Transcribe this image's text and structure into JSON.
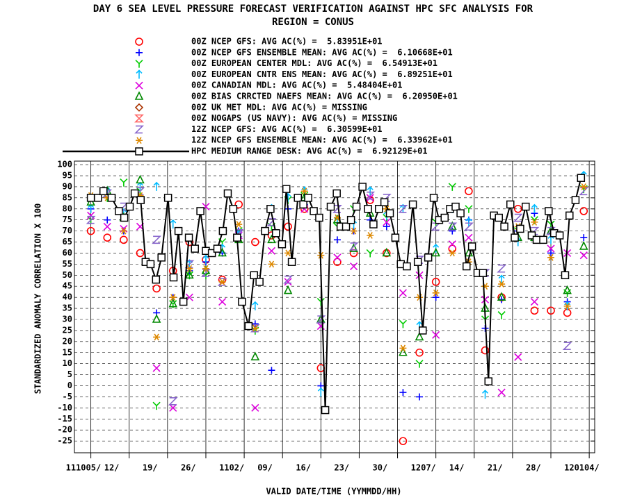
{
  "chart_data": {
    "type": "scatter",
    "title": "DAY 6 SEA LEVEL PRESSURE FORECAST VERIFICATION AGAINST HPC SFC ANALYSIS FOR",
    "subtitle": "REGION = CONUS",
    "x_label": "VALID DATE/TIME (YYMMDD/HH)",
    "y_label": "STANDARDIZED ANOMALY CORRELATION X 100",
    "xlim": [
      -3,
      92
    ],
    "ylim": [
      -30.3,
      101.6
    ],
    "xticks": [
      {
        "value": 0,
        "label": "111005/"
      },
      {
        "value": 7,
        "label": "12/"
      },
      {
        "value": 14,
        "label": "19/"
      },
      {
        "value": 21,
        "label": "26/"
      },
      {
        "value": 28,
        "label": "1102/"
      },
      {
        "value": 35,
        "label": "09/"
      },
      {
        "value": 42,
        "label": "16/"
      },
      {
        "value": 49,
        "label": "23/"
      },
      {
        "value": 56,
        "label": "30/"
      },
      {
        "value": 63,
        "label": "1207/"
      },
      {
        "value": 70,
        "label": "14/"
      },
      {
        "value": 77,
        "label": "21/"
      },
      {
        "value": 84,
        "label": "28/"
      },
      {
        "value": 91,
        "label": "120104/"
      }
    ],
    "yticks": [
      -25,
      -20,
      -15,
      -10,
      -5,
      0,
      5,
      10,
      15,
      20,
      25,
      30,
      35,
      40,
      45,
      50,
      55,
      60,
      65,
      70,
      75,
      80,
      85,
      90,
      95,
      100
    ],
    "grid": true,
    "series": [
      {
        "name": "00Z NCEP GFS: AVG AC(%) =  5.83951E+01",
        "color": "#ff0000",
        "marker": "circle",
        "x": [
          0,
          3,
          6,
          9,
          12,
          15,
          18,
          21,
          24,
          27,
          30,
          33,
          36,
          39,
          42,
          45,
          48,
          51,
          54,
          57,
          60,
          63,
          66,
          69,
          72,
          75,
          78,
          81,
          84,
          87,
          90
        ],
        "values": [
          70,
          67,
          66,
          60,
          44,
          52,
          65,
          57,
          48,
          82,
          65,
          68,
          72,
          80,
          8,
          56,
          60,
          84,
          60,
          -25,
          15,
          47,
          62,
          88,
          16,
          40,
          80,
          34,
          34,
          33,
          79
        ]
      },
      {
        "name": "00Z NCEP GFS ENSEMBLE MEAN: AVG AC(%) =  6.10668E+01",
        "color": "#0000ff",
        "marker": "plus",
        "x": [
          0,
          3,
          6,
          9,
          12,
          15,
          18,
          21,
          24,
          27,
          30,
          33,
          36,
          39,
          42,
          45,
          48,
          51,
          54,
          57,
          60,
          63,
          66,
          69,
          72,
          75,
          78,
          81,
          84,
          87,
          90
        ],
        "values": [
          80,
          75,
          70,
          85,
          33,
          40,
          52,
          56,
          60,
          70,
          28,
          7,
          80,
          82,
          0,
          66,
          70,
          75,
          72,
          -3,
          -5,
          40,
          70,
          75,
          26,
          39,
          70,
          78,
          60,
          38,
          67
        ]
      },
      {
        "name": "00Z EUROPEAN CENTER MDL: AVG AC(%) =  6.54913E+01",
        "color": "#00cc00",
        "marker": "y",
        "x": [
          0,
          3,
          6,
          9,
          12,
          15,
          18,
          21,
          24,
          27,
          30,
          33,
          36,
          39,
          42,
          45,
          48,
          51,
          54,
          57,
          60,
          63,
          66,
          69,
          72,
          75,
          78,
          81,
          84,
          87,
          90
        ],
        "values": [
          75,
          85,
          92,
          88,
          -9,
          37,
          50,
          50,
          65,
          70,
          25,
          72,
          84,
          86,
          38,
          72,
          80,
          60,
          76,
          28,
          10,
          74,
          90,
          80,
          30,
          32,
          70,
          75,
          73,
          42,
          89
        ]
      },
      {
        "name": "00Z EUROPEAN CNTR ENS MEAN: AVG AC(%) =  6.89251E+01",
        "color": "#00bbff",
        "marker": "arrow",
        "x": [
          0,
          3,
          6,
          9,
          12,
          15,
          18,
          21,
          24,
          27,
          30,
          33,
          36,
          39,
          42,
          45,
          48,
          51,
          54,
          57,
          60,
          63,
          66,
          69,
          72,
          75,
          78,
          81,
          84,
          87,
          90
        ],
        "values": [
          80,
          88,
          78,
          90,
          90,
          73,
          55,
          57,
          62,
          68,
          36,
          80,
          85,
          88,
          -3,
          75,
          73,
          88,
          77,
          80,
          27,
          62,
          80,
          74,
          -4,
          48,
          65,
          80,
          66,
          36,
          95
        ]
      },
      {
        "name": "00Z CANADIAN MDL: AVG AC(%) =  5.48404E+01",
        "color": "#dd00dd",
        "marker": "x",
        "x": [
          0,
          3,
          6,
          9,
          12,
          15,
          18,
          21,
          24,
          27,
          30,
          33,
          36,
          39,
          42,
          45,
          48,
          51,
          54,
          57,
          60,
          63,
          66,
          69,
          72,
          75,
          78,
          81,
          84,
          87,
          90
        ],
        "values": [
          77,
          72,
          71,
          72,
          8,
          -10,
          40,
          81,
          38,
          68,
          -10,
          61,
          47,
          80,
          27,
          58,
          54,
          85,
          74,
          42,
          50,
          23,
          64,
          67,
          39,
          -3,
          13,
          38,
          62,
          60,
          59
        ]
      },
      {
        "name": "00Z BIAS CRRCTED NAEFS MEAN: AVG AC(%) =  6.20950E+01",
        "color": "#008800",
        "marker": "triangle",
        "x": [
          0,
          3,
          6,
          9,
          12,
          15,
          18,
          21,
          24,
          27,
          30,
          33,
          36,
          39,
          42,
          45,
          48,
          51,
          54,
          57,
          60,
          63,
          66,
          69,
          72,
          75,
          78,
          81,
          84,
          87,
          90
        ],
        "values": [
          83,
          88,
          76,
          93,
          30,
          37,
          50,
          52,
          60,
          66,
          13,
          66,
          43,
          85,
          30,
          75,
          62,
          78,
          60,
          15,
          22,
          60,
          72,
          60,
          35,
          40,
          67,
          67,
          70,
          43,
          63
        ]
      },
      {
        "name": "00Z UK MET MDL: AVG AC(%) = MISSING",
        "color": "#aa3300",
        "marker": "diamond",
        "x": [],
        "values": []
      },
      {
        "name": "00Z NOGAPS (US NAVY): AVG AC(%) = MISSING",
        "color": "#ff6666",
        "marker": "hourglass",
        "x": [],
        "values": []
      },
      {
        "name": "12Z NCEP GFS: AVG AC(%) =  6.30599E+01",
        "color": "#8866cc",
        "marker": "z",
        "x": [
          0,
          3,
          6,
          9,
          12,
          15,
          18,
          21,
          24,
          27,
          30,
          33,
          36,
          39,
          42,
          45,
          48,
          51,
          54,
          57,
          60,
          63,
          66,
          69,
          72,
          75,
          78,
          81,
          84,
          87,
          90
        ],
        "values": [
          75,
          87,
          81,
          88,
          66,
          -7,
          55,
          51,
          47,
          69,
          26,
          74,
          48,
          82,
          30,
          80,
          63,
          86,
          85,
          80,
          57,
          72,
          72,
          72,
          51,
          53,
          76,
          70,
          70,
          18,
          88
        ]
      },
      {
        "name": "12Z NCEP GFS ENSEMBLE MEAN: AVG AC(%) =  6.33962E+01",
        "color": "#dd8800",
        "marker": "asterisk",
        "x": [
          0,
          3,
          6,
          9,
          12,
          15,
          18,
          21,
          24,
          27,
          30,
          33,
          36,
          39,
          42,
          45,
          48,
          51,
          54,
          57,
          60,
          63,
          66,
          69,
          72,
          75,
          78,
          81,
          84,
          87,
          90
        ],
        "values": [
          86,
          85,
          70,
          86,
          22,
          40,
          53,
          53,
          47,
          73,
          26,
          55,
          60,
          88,
          59,
          76,
          70,
          68,
          80,
          17,
          40,
          42,
          60,
          56,
          45,
          46,
          72,
          74,
          58,
          36,
          90
        ]
      },
      {
        "name": "HPC MEDIUM RANGE DESK: AVG AC(%) =  6.92129E+01",
        "color": "#000000",
        "marker": "square",
        "line": true,
        "x": [
          0,
          1.3,
          2.3,
          3.8,
          5.1,
          6.1,
          7.1,
          8,
          9.1,
          10,
          10.9,
          11.9,
          12.9,
          14.1,
          15.1,
          16,
          16.9,
          17.9,
          19,
          20,
          21,
          22.1,
          23.1,
          24.1,
          25,
          26,
          26.7,
          27.6,
          28.8,
          29.8,
          30.8,
          31.8,
          32.8,
          33.8,
          34.9,
          35.7,
          36.7,
          37.8,
          38.8,
          39.7,
          40.7,
          41.7,
          42.8,
          43.8,
          44.9,
          45.6,
          46.6,
          47.5,
          48.5,
          49.6,
          50.6,
          51.6,
          52.6,
          53.6,
          54.6,
          55.6,
          56.6,
          57.7,
          58.8,
          59.7,
          60.6,
          61.6,
          62.6,
          63.6,
          64.6,
          65.6,
          66.6,
          67.5,
          68.6,
          69.6,
          70.6,
          71.6,
          72.6,
          73.6,
          74.5,
          75.5,
          76.6,
          77.4,
          78.4,
          79.4,
          80.5,
          81.4,
          82.6,
          83.6,
          84.6,
          85.6,
          86.6,
          87.4,
          88.5,
          89.5
        ],
        "values": [
          85,
          85,
          88,
          85,
          79,
          76,
          81,
          87,
          84,
          56,
          55,
          48,
          58,
          85,
          49,
          70,
          38,
          67,
          62,
          79,
          61,
          60,
          62,
          70,
          87,
          80,
          67,
          38,
          27,
          50,
          47,
          70,
          80,
          69,
          64,
          89,
          56,
          85,
          82,
          85,
          79,
          76,
          -11,
          81,
          87,
          72,
          72,
          75,
          81,
          90,
          80,
          73,
          80,
          83,
          78,
          67,
          55,
          54,
          82,
          56,
          25,
          58,
          85,
          75,
          76,
          80,
          81,
          78,
          54,
          63,
          51,
          51,
          2,
          77,
          76,
          72,
          82,
          67,
          71,
          81,
          68,
          66,
          66,
          79,
          69,
          68,
          50,
          77,
          84,
          94
        ]
      }
    ]
  }
}
